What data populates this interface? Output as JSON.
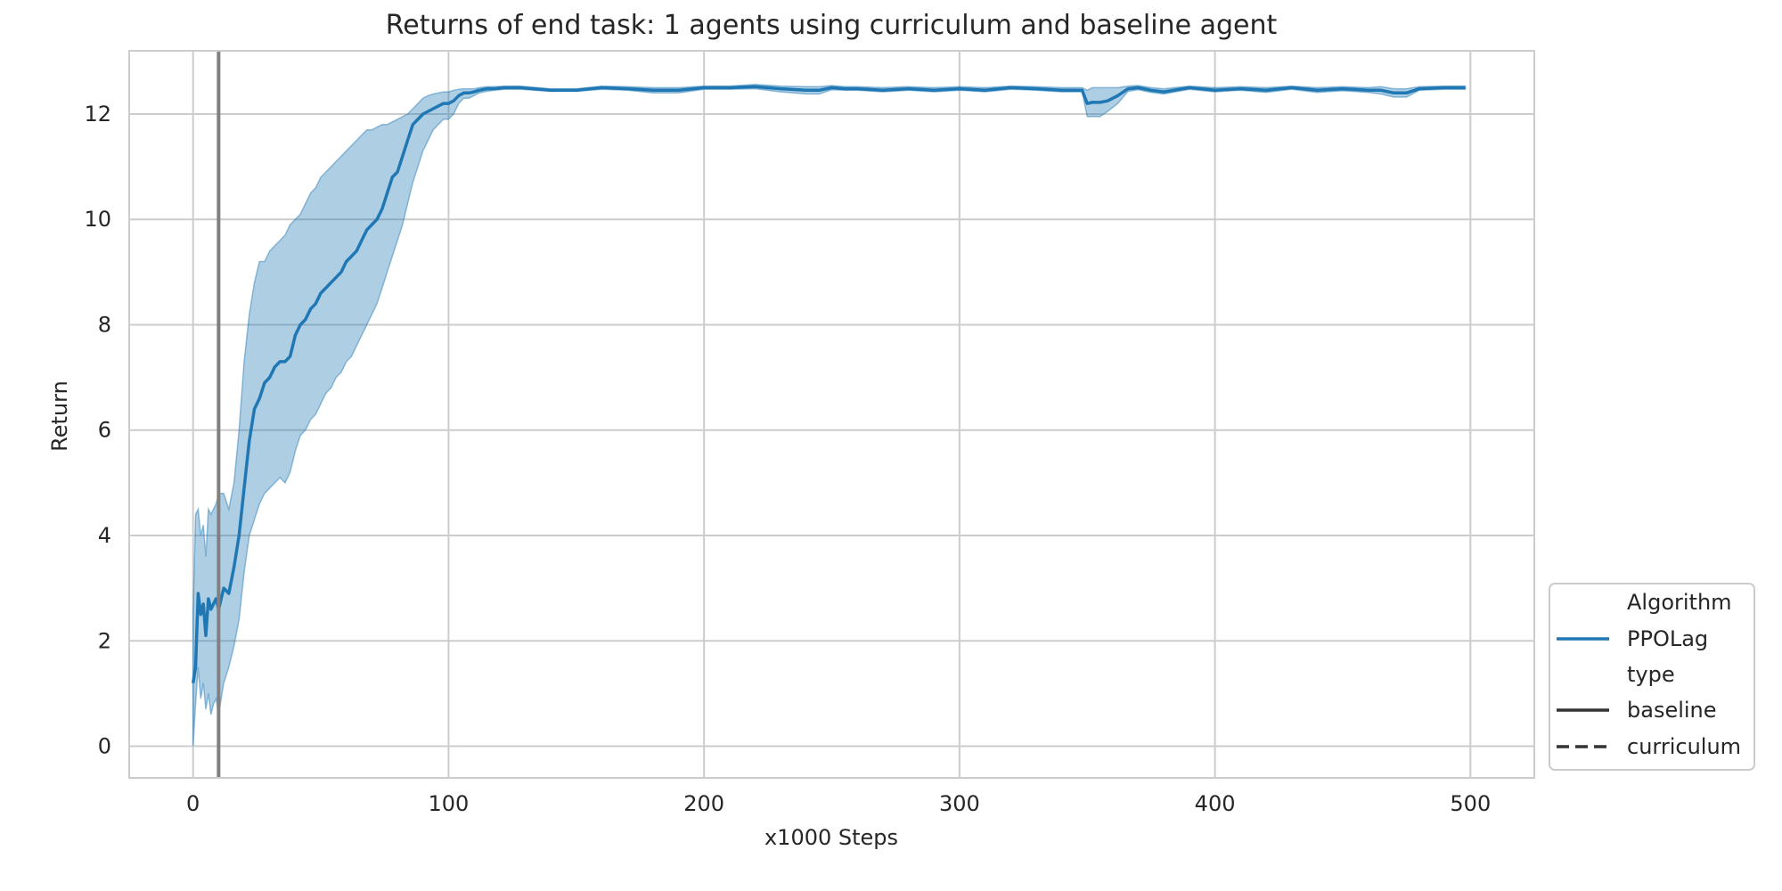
{
  "chart_data": {
    "type": "line",
    "title": "Returns of end task: 1 agents using curriculum and baseline agent",
    "xlabel": "x1000 Steps",
    "ylabel": "Return",
    "xlim": [
      -25,
      525
    ],
    "ylim": [
      -0.6,
      13.2
    ],
    "xticks": [
      0,
      100,
      200,
      300,
      400,
      500
    ],
    "yticks": [
      0,
      2,
      4,
      6,
      8,
      10,
      12
    ],
    "grid": true,
    "vline_x": 10,
    "colors": {
      "series": "#1f77b4",
      "band": "#1f77b4",
      "vline": "#808080",
      "grid": "#cccccc",
      "legend_line": "#333333"
    },
    "series": [
      {
        "name": "PPOLag",
        "type_style": "baseline",
        "x": [
          0,
          1,
          2,
          3,
          4,
          5,
          6,
          7,
          8,
          9,
          10,
          12,
          14,
          16,
          18,
          20,
          22,
          24,
          26,
          28,
          30,
          32,
          34,
          36,
          38,
          40,
          42,
          44,
          46,
          48,
          50,
          52,
          54,
          56,
          58,
          60,
          62,
          64,
          66,
          68,
          70,
          72,
          74,
          76,
          78,
          80,
          82,
          84,
          86,
          88,
          90,
          92,
          94,
          96,
          98,
          100,
          102,
          104,
          106,
          108,
          110,
          112,
          115,
          118,
          122,
          125,
          128,
          140,
          150,
          160,
          170,
          180,
          190,
          200,
          210,
          220,
          230,
          240,
          245,
          250,
          255,
          260,
          270,
          280,
          290,
          300,
          310,
          320,
          330,
          340,
          348,
          350,
          352,
          355,
          358,
          362,
          366,
          370,
          375,
          380,
          390,
          400,
          410,
          420,
          430,
          440,
          450,
          460,
          465,
          470,
          475,
          480,
          490,
          498
        ],
        "y": [
          1.2,
          1.5,
          2.9,
          2.5,
          2.7,
          2.1,
          2.8,
          2.6,
          2.7,
          2.8,
          2.6,
          3.0,
          2.9,
          3.4,
          4.0,
          4.9,
          5.8,
          6.4,
          6.6,
          6.9,
          7.0,
          7.2,
          7.3,
          7.3,
          7.4,
          7.8,
          8.0,
          8.1,
          8.3,
          8.4,
          8.6,
          8.7,
          8.8,
          8.9,
          9.0,
          9.2,
          9.3,
          9.4,
          9.6,
          9.8,
          9.9,
          10.0,
          10.2,
          10.5,
          10.8,
          10.9,
          11.2,
          11.5,
          11.8,
          11.9,
          12.0,
          12.05,
          12.1,
          12.15,
          12.2,
          12.2,
          12.25,
          12.35,
          12.4,
          12.4,
          12.42,
          12.45,
          12.48,
          12.48,
          12.5,
          12.5,
          12.5,
          12.45,
          12.45,
          12.5,
          12.48,
          12.45,
          12.45,
          12.5,
          12.5,
          12.52,
          12.48,
          12.45,
          12.45,
          12.5,
          12.48,
          12.48,
          12.45,
          12.48,
          12.45,
          12.48,
          12.45,
          12.5,
          12.48,
          12.45,
          12.45,
          12.2,
          12.22,
          12.22,
          12.25,
          12.35,
          12.48,
          12.5,
          12.45,
          12.42,
          12.5,
          12.45,
          12.48,
          12.45,
          12.5,
          12.45,
          12.48,
          12.45,
          12.45,
          12.4,
          12.4,
          12.48,
          12.5,
          12.5
        ],
        "ci_low": [
          0.0,
          0.8,
          1.5,
          0.9,
          1.2,
          0.7,
          1.0,
          0.6,
          0.8,
          0.9,
          0.6,
          1.2,
          1.5,
          1.9,
          2.4,
          3.3,
          4.0,
          4.3,
          4.6,
          4.8,
          4.9,
          5.0,
          5.1,
          5.0,
          5.2,
          5.6,
          5.9,
          6.0,
          6.2,
          6.3,
          6.5,
          6.7,
          6.8,
          7.0,
          7.1,
          7.3,
          7.4,
          7.6,
          7.8,
          8.0,
          8.2,
          8.4,
          8.7,
          9.0,
          9.3,
          9.6,
          9.9,
          10.3,
          10.7,
          11.0,
          11.3,
          11.5,
          11.7,
          11.8,
          11.9,
          11.9,
          12.0,
          12.2,
          12.3,
          12.3,
          12.35,
          12.4,
          12.43,
          12.45,
          12.47,
          12.47,
          12.47,
          12.43,
          12.43,
          12.47,
          12.45,
          12.4,
          12.4,
          12.47,
          12.47,
          12.48,
          12.42,
          12.38,
          12.38,
          12.46,
          12.45,
          12.45,
          12.42,
          12.45,
          12.42,
          12.45,
          12.42,
          12.47,
          12.45,
          12.42,
          12.42,
          11.95,
          11.95,
          11.95,
          12.05,
          12.2,
          12.43,
          12.46,
          12.41,
          12.38,
          12.47,
          12.42,
          12.45,
          12.41,
          12.47,
          12.41,
          12.44,
          12.41,
          12.38,
          12.32,
          12.32,
          12.45,
          12.47,
          12.47
        ],
        "ci_high": [
          2.5,
          4.4,
          4.5,
          4.0,
          4.2,
          3.6,
          4.5,
          4.4,
          4.5,
          4.6,
          4.8,
          4.8,
          4.5,
          5.0,
          6.0,
          7.3,
          8.2,
          8.8,
          9.2,
          9.2,
          9.4,
          9.5,
          9.6,
          9.7,
          9.9,
          10.0,
          10.1,
          10.3,
          10.5,
          10.6,
          10.8,
          10.9,
          11.0,
          11.1,
          11.2,
          11.3,
          11.4,
          11.5,
          11.6,
          11.7,
          11.7,
          11.75,
          11.8,
          11.8,
          11.85,
          11.9,
          11.95,
          12.0,
          12.1,
          12.2,
          12.3,
          12.35,
          12.38,
          12.4,
          12.42,
          12.42,
          12.45,
          12.47,
          12.48,
          12.48,
          12.48,
          12.5,
          12.52,
          12.52,
          12.53,
          12.53,
          12.53,
          12.48,
          12.48,
          12.53,
          12.52,
          12.5,
          12.5,
          12.53,
          12.53,
          12.56,
          12.53,
          12.52,
          12.52,
          12.54,
          12.52,
          12.52,
          12.5,
          12.52,
          12.5,
          12.52,
          12.5,
          12.53,
          12.52,
          12.5,
          12.5,
          12.45,
          12.5,
          12.5,
          12.5,
          12.5,
          12.53,
          12.54,
          12.5,
          12.48,
          12.53,
          12.5,
          12.52,
          12.5,
          12.53,
          12.5,
          12.52,
          12.5,
          12.52,
          12.48,
          12.48,
          12.52,
          12.53,
          12.53
        ]
      }
    ],
    "legend": {
      "placement": "lower-right-outside",
      "entries": [
        {
          "label": "Algorithm",
          "kind": "header"
        },
        {
          "label": "PPOLag",
          "kind": "solid-color"
        },
        {
          "label": "type",
          "kind": "header"
        },
        {
          "label": "baseline",
          "kind": "solid-dark"
        },
        {
          "label": "curriculum",
          "kind": "dashed-dark"
        }
      ]
    }
  }
}
